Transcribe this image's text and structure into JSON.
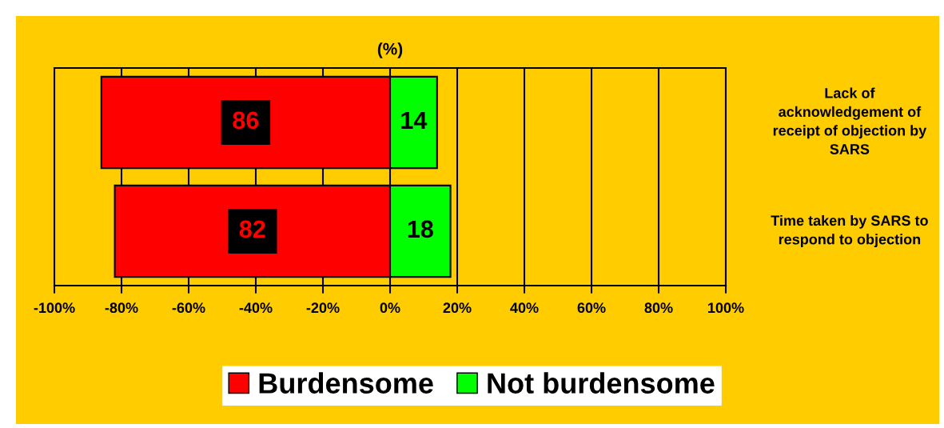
{
  "chart_data": {
    "type": "bar",
    "orientation": "horizontal",
    "title": "(%)",
    "categories": [
      "Lack of acknowledgement of receipt of objection by SARS",
      "Time taken by SARS to respond to objection"
    ],
    "series": [
      {
        "name": "Burdensome",
        "color": "#ff0000",
        "base": [
          -86,
          -82
        ],
        "values": [
          86,
          82
        ],
        "data_labels": true
      },
      {
        "name": "Not burdensome",
        "color": "#00ff00",
        "values": [
          14,
          18
        ],
        "value_labels": [
          "14",
          "18"
        ]
      }
    ],
    "xlim": [
      -100,
      100
    ],
    "xticks": [
      {
        "value": -100,
        "label": "-100%"
      },
      {
        "value": -80,
        "label": "-80%"
      },
      {
        "value": -60,
        "label": "-60%"
      },
      {
        "value": -40,
        "label": "-40%"
      },
      {
        "value": -20,
        "label": "-20%"
      },
      {
        "value": 0,
        "label": "0%"
      },
      {
        "value": 20,
        "label": "20%"
      },
      {
        "value": 40,
        "label": "40%"
      },
      {
        "value": 60,
        "label": "60%"
      },
      {
        "value": 80,
        "label": "80%"
      },
      {
        "value": 100,
        "label": "100%"
      }
    ],
    "grid": "x",
    "legend": "bottom"
  }
}
